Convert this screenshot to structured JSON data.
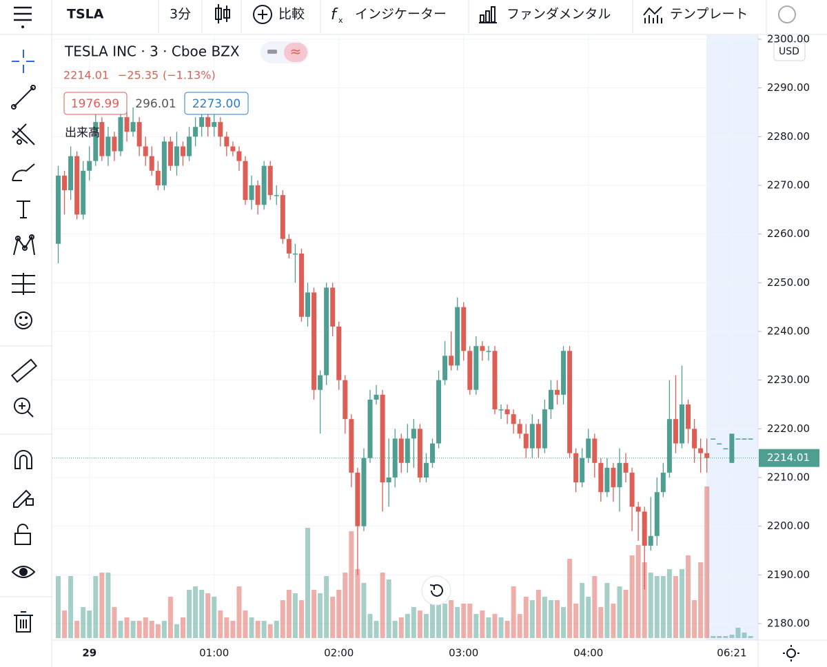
{
  "toolbar": {
    "symbol": "TSLA",
    "interval": "3分",
    "compare": "比較",
    "indicators": "インジケーター",
    "fundamentals": "ファンダメンタル",
    "templates": "テンプレート"
  },
  "legend": {
    "title": "TESLA INC · 3 · Cboe BZX",
    "price": "2214.01",
    "change": "−25.35",
    "change_pct": "(−1.13%)",
    "bid": "1976.99",
    "spread": "296.01",
    "ask": "2273.00",
    "volume_label": "出来高"
  },
  "currency": "USD",
  "chart_data": {
    "type": "candlestick",
    "up_color": "#4e9f91",
    "down_color": "#dd5e55",
    "categories": [
      null,
      null,
      null,
      null,
      null,
      "29",
      null,
      null,
      null,
      null,
      null,
      null,
      null,
      null,
      null,
      null,
      null,
      null,
      null,
      null,
      null,
      null,
      null,
      null,
      null,
      "01:00",
      null,
      null,
      null,
      null,
      null,
      null,
      null,
      null,
      null,
      null,
      null,
      null,
      null,
      null,
      null,
      null,
      null,
      null,
      null,
      "02:00",
      null,
      null,
      null,
      null,
      null,
      null,
      null,
      null,
      null,
      null,
      null,
      null,
      null,
      null,
      null,
      null,
      null,
      null,
      null,
      "03:00",
      null,
      null,
      null,
      null,
      null,
      null,
      null,
      null,
      null,
      null,
      null,
      null,
      null,
      null,
      null,
      null,
      null,
      null,
      null,
      "04:00",
      null,
      null,
      null,
      null,
      null,
      null,
      null,
      null,
      null,
      null,
      null,
      null,
      null,
      null,
      null,
      null,
      null,
      null,
      null,
      null,
      null,
      null,
      "06:21",
      null,
      null,
      null
    ],
    "open": [
      2258,
      2272,
      2269,
      2276,
      2264,
      2273,
      2275,
      2283,
      2276,
      2280,
      2277,
      2284,
      2281,
      2283,
      2278,
      2276,
      2273,
      2270,
      2279,
      2274,
      2278,
      2276,
      2280,
      2282,
      2284,
      2282,
      2283,
      2280,
      2278,
      2277,
      2275,
      2267,
      2270,
      2266,
      2274,
      2268,
      2268,
      2259,
      2256,
      2256,
      2243,
      2248,
      2228,
      2231,
      2249,
      2241,
      2230,
      2222,
      2211,
      2200,
      2214,
      2226,
      2227,
      2209,
      2210,
      2218,
      2213,
      2218,
      2220,
      2210,
      2213,
      2217,
      2230,
      2235,
      2233,
      2245,
      2236,
      2228,
      2237,
      2236,
      2236,
      2224,
      2224,
      2223,
      2221,
      2219,
      2216,
      2221,
      2216,
      2224,
      2228,
      2227,
      2236,
      2215,
      2209,
      2214,
      2218,
      2213,
      2207,
      2212,
      2208,
      2213,
      2211,
      2204,
      2203,
      2196,
      2198,
      2207,
      2211,
      2222,
      2217,
      2225,
      2220,
      2216,
      2215,
      2218,
      2217,
      2216,
      2213,
      2218,
      2218,
      2218
    ],
    "high": [
      2274,
      2273,
      2278,
      2277,
      2275,
      2278,
      2286,
      2284,
      2282,
      2281,
      2286,
      2285,
      2286,
      2284,
      2280,
      2278,
      2275,
      2280,
      2280,
      2281,
      2279,
      2282,
      2284,
      2285,
      2285,
      2285,
      2284,
      2281,
      2279,
      2278,
      2276,
      2272,
      2271,
      2275,
      2275,
      2270,
      2269,
      2260,
      2258,
      2257,
      2250,
      2249,
      2232,
      2250,
      2250,
      2242,
      2231,
      2223,
      2212,
      2216,
      2228,
      2229,
      2228,
      2218,
      2220,
      2219,
      2221,
      2222,
      2221,
      2215,
      2218,
      2232,
      2238,
      2240,
      2247,
      2246,
      2237,
      2239,
      2238,
      2237,
      2237,
      2225,
      2225,
      2224,
      2222,
      2221,
      2223,
      2222,
      2226,
      2230,
      2230,
      2237,
      2237,
      2216,
      2216,
      2220,
      2219,
      2214,
      2214,
      2213,
      2216,
      2215,
      2212,
      2205,
      2204,
      2206,
      2210,
      2213,
      2230,
      2231,
      2233,
      2226,
      2222,
      2218,
      2218,
      2218,
      2217,
      2216,
      2219,
      2218,
      2218,
      2218
    ],
    "low": [
      2254,
      2264,
      2267,
      2263,
      2263,
      2271,
      2274,
      2275,
      2274,
      2275,
      2276,
      2279,
      2280,
      2276,
      2274,
      2272,
      2269,
      2269,
      2273,
      2272,
      2274,
      2275,
      2278,
      2280,
      2280,
      2280,
      2278,
      2276,
      2276,
      2273,
      2266,
      2265,
      2264,
      2265,
      2267,
      2266,
      2258,
      2255,
      2250,
      2242,
      2241,
      2226,
      2219,
      2229,
      2239,
      2228,
      2219,
      2208,
      2190,
      2199,
      2213,
      2225,
      2203,
      2204,
      2208,
      2211,
      2211,
      2212,
      2209,
      2209,
      2212,
      2216,
      2229,
      2232,
      2232,
      2234,
      2227,
      2227,
      2234,
      2234,
      2223,
      2222,
      2221,
      2219,
      2218,
      2214,
      2214,
      2214,
      2215,
      2222,
      2225,
      2225,
      2214,
      2207,
      2208,
      2213,
      2210,
      2205,
      2206,
      2205,
      2203,
      2209,
      2199,
      2197,
      2187,
      2195,
      2196,
      2206,
      2210,
      2215,
      2216,
      2217,
      2213,
      2211,
      2211,
      2218,
      2217,
      2216,
      2213,
      2218,
      2218,
      2218
    ],
    "close": [
      2272,
      2269,
      2276,
      2264,
      2273,
      2275,
      2283,
      2276,
      2280,
      2277,
      2284,
      2281,
      2283,
      2278,
      2276,
      2273,
      2270,
      2279,
      2274,
      2278,
      2276,
      2280,
      2282,
      2284,
      2282,
      2283,
      2280,
      2278,
      2277,
      2275,
      2267,
      2270,
      2266,
      2274,
      2268,
      2268,
      2259,
      2256,
      2256,
      2243,
      2248,
      2228,
      2231,
      2249,
      2241,
      2230,
      2222,
      2211,
      2200,
      2214,
      2226,
      2227,
      2209,
      2210,
      2218,
      2213,
      2218,
      2220,
      2210,
      2213,
      2217,
      2230,
      2235,
      2233,
      2245,
      2236,
      2228,
      2237,
      2236,
      2236,
      2224,
      2224,
      2223,
      2221,
      2219,
      2216,
      2221,
      2216,
      2224,
      2228,
      2227,
      2236,
      2215,
      2209,
      2214,
      2218,
      2213,
      2207,
      2212,
      2208,
      2213,
      2211,
      2204,
      2203,
      2196,
      2198,
      2207,
      2211,
      2222,
      2217,
      2225,
      2220,
      2216,
      2215,
      2214.01,
      2218,
      2217,
      2216,
      2219,
      2218,
      2218,
      2218
    ],
    "volume": [
      90,
      40,
      90,
      25,
      45,
      40,
      90,
      95,
      95,
      45,
      25,
      30,
      25,
      25,
      30,
      25,
      20,
      25,
      60,
      20,
      30,
      70,
      75,
      70,
      65,
      60,
      40,
      30,
      25,
      75,
      40,
      30,
      25,
      25,
      20,
      25,
      55,
      70,
      65,
      55,
      160,
      70,
      65,
      90,
      60,
      70,
      95,
      155,
      100,
      80,
      35,
      25,
      95,
      85,
      25,
      30,
      35,
      45,
      40,
      35,
      60,
      80,
      50,
      55,
      45,
      50,
      50,
      35,
      40,
      30,
      35,
      30,
      25,
      75,
      35,
      60,
      55,
      70,
      60,
      55,
      55,
      45,
      115,
      50,
      80,
      60,
      90,
      45,
      80,
      50,
      75,
      70,
      120,
      135,
      110,
      95,
      90,
      90,
      100,
      90,
      100,
      120,
      55,
      110,
      220,
      3,
      3,
      3,
      5,
      15,
      8,
      3
    ],
    "ylim": [
      2177,
      2303
    ],
    "yticks": [
      {
        "value": 2180,
        "label": "2180.00"
      },
      {
        "value": 2190,
        "label": "2190.00"
      },
      {
        "value": 2200,
        "label": "2200.00"
      },
      {
        "value": 2210,
        "label": "2210.00"
      },
      {
        "value": 2220,
        "label": "2220.00"
      },
      {
        "value": 2230,
        "label": "2230.00"
      },
      {
        "value": 2240,
        "label": "2240.00"
      },
      {
        "value": 2250,
        "label": "2250.00"
      },
      {
        "value": 2260,
        "label": "2260.00"
      },
      {
        "value": 2270,
        "label": "2270.00"
      },
      {
        "value": 2280,
        "label": "2280.00"
      },
      {
        "value": 2290,
        "label": "2290.00"
      },
      {
        "value": 2300,
        "label": "2300.00"
      }
    ],
    "grid": true
  }
}
